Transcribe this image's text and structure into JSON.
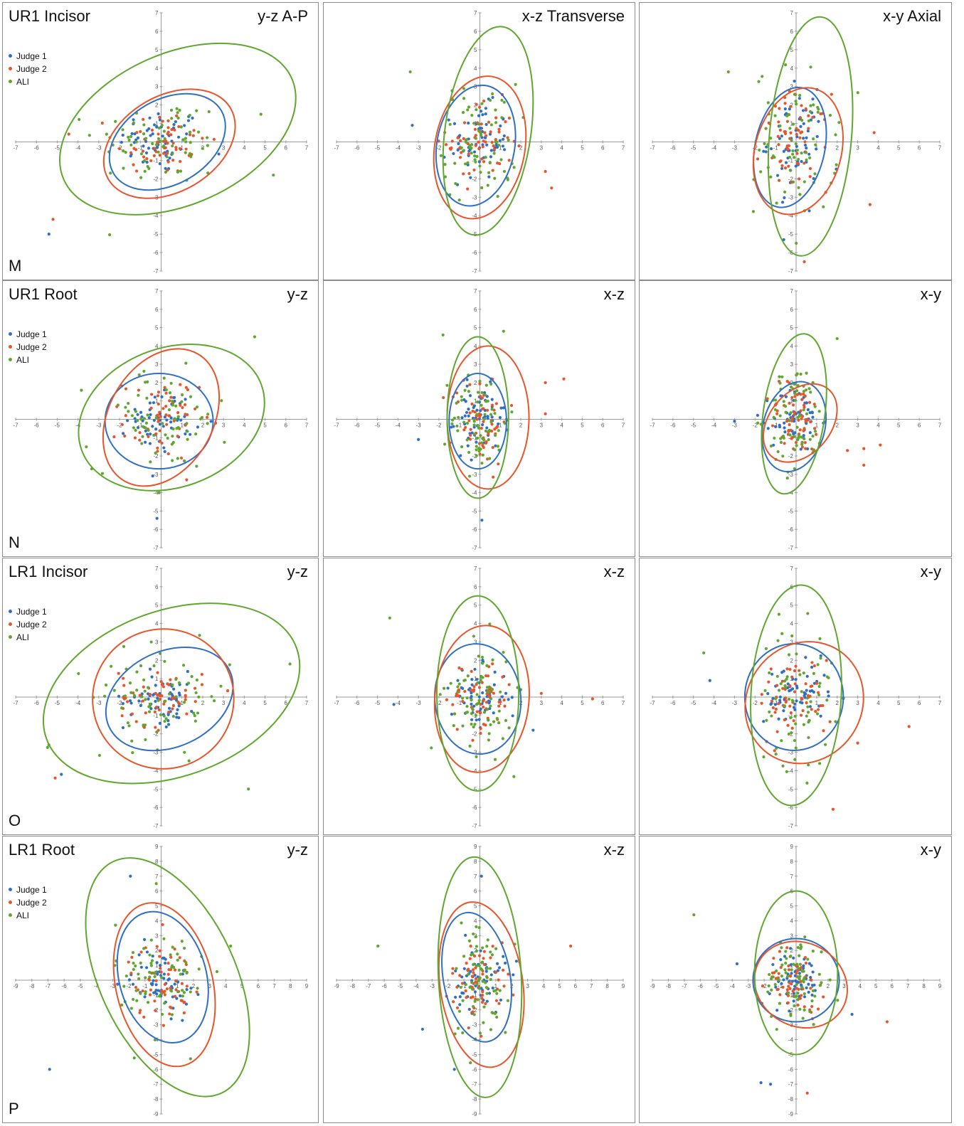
{
  "colors": {
    "judge1": "#2f6fc4",
    "judge2": "#e8552a",
    "ali": "#5fa72e"
  },
  "rows": [
    {
      "title": "UR1 Incisor",
      "letter": "M",
      "legend": [
        "Judge 1",
        "Judge 2",
        "ALI"
      ],
      "range": 7,
      "planes": [
        "y-z A-P",
        "x-z Transverse",
        "x-y Axial"
      ]
    },
    {
      "title": "UR1 Root",
      "letter": "N",
      "legend": [
        "Judge 1",
        "Judge 2",
        "ALI"
      ],
      "range": 7,
      "planes": [
        "y-z",
        "x-z",
        "x-y"
      ]
    },
    {
      "title": "LR1 Incisor",
      "letter": "O",
      "legend": [
        "Judge 1",
        "Judge 2",
        "ALI"
      ],
      "range": 7,
      "planes": [
        "y-z",
        "x-z",
        "x-y"
      ]
    },
    {
      "title": "LR1 Root",
      "letter": "P",
      "legend": [
        "Judge 1",
        "Judge 2",
        "ALI"
      ],
      "range": 9,
      "planes": [
        "y-z",
        "x-z",
        "x-y"
      ]
    }
  ],
  "chart_data": [
    {
      "type": "scatter",
      "title": "UR1 Incisor",
      "subtitle": "y-z A-P",
      "xlim": [
        -7,
        7
      ],
      "ylim": [
        -7,
        7
      ],
      "series": [
        {
          "name": "Judge 1",
          "n": 60,
          "sx": 1.0,
          "sy": 0.9
        },
        {
          "name": "Judge 2",
          "n": 60,
          "sx": 1.1,
          "sy": 0.9
        },
        {
          "name": "ALI",
          "n": 70,
          "sx": 1.6,
          "sy": 1.2
        }
      ],
      "ellipses": [
        {
          "name": "Judge 1",
          "cx": 0.3,
          "cy": 0,
          "rx": 3.0,
          "ry": 2.3,
          "angle": 30
        },
        {
          "name": "Judge 2",
          "cx": 0.4,
          "cy": -0.1,
          "rx": 3.4,
          "ry": 2.6,
          "angle": 30
        },
        {
          "name": "ALI",
          "cx": 0.8,
          "cy": 0.7,
          "rx": 6.0,
          "ry": 4.1,
          "angle": 24
        }
      ],
      "outliers": [
        {
          "series": "Judge 1",
          "x": -5.4,
          "y": -5
        },
        {
          "series": "Judge 2",
          "x": -5.2,
          "y": -4.2
        },
        {
          "series": "ALI",
          "x": 5.4,
          "y": -1.8
        },
        {
          "series": "ALI",
          "x": 4.8,
          "y": 1.5
        }
      ]
    },
    {
      "type": "scatter",
      "title": "UR1 Incisor",
      "subtitle": "x-z Transverse",
      "xlim": [
        -7,
        7
      ],
      "ylim": [
        -7,
        7
      ],
      "series": [
        {
          "name": "Judge 1",
          "n": 60,
          "sx": 0.7,
          "sy": 1.0
        },
        {
          "name": "Judge 2",
          "n": 60,
          "sx": 0.8,
          "sy": 1.1
        },
        {
          "name": "ALI",
          "n": 70,
          "sx": 0.9,
          "sy": 1.6
        }
      ],
      "ellipses": [
        {
          "name": "Judge 1",
          "cx": -0.2,
          "cy": -0.2,
          "rx": 1.9,
          "ry": 3.3,
          "angle": -10
        },
        {
          "name": "Judge 2",
          "cx": 0,
          "cy": -0.3,
          "rx": 2.2,
          "ry": 3.9,
          "angle": -10
        },
        {
          "name": "ALI",
          "cx": 0.4,
          "cy": 0.6,
          "rx": 2.1,
          "ry": 5.7,
          "angle": -8
        }
      ],
      "outliers": [
        {
          "series": "ALI",
          "x": -3.4,
          "y": 3.8
        },
        {
          "series": "Judge 2",
          "x": 3.5,
          "y": -2.5
        },
        {
          "series": "Judge 2",
          "x": 3.2,
          "y": -1.6
        },
        {
          "series": "Judge 1",
          "x": -3.3,
          "y": 0.9
        }
      ]
    },
    {
      "type": "scatter",
      "title": "UR1 Incisor",
      "subtitle": "x-y Axial",
      "xlim": [
        -7,
        7
      ],
      "ylim": [
        -7,
        7
      ],
      "series": [
        {
          "name": "Judge 1",
          "n": 60,
          "sx": 0.7,
          "sy": 1.3
        },
        {
          "name": "Judge 2",
          "n": 60,
          "sx": 0.8,
          "sy": 1.3
        },
        {
          "name": "ALI",
          "n": 70,
          "sx": 1.0,
          "sy": 2.0
        }
      ],
      "ellipses": [
        {
          "name": "Judge 1",
          "cx": -0.3,
          "cy": -0.3,
          "rx": 1.7,
          "ry": 3.3,
          "angle": -12
        },
        {
          "name": "Judge 2",
          "cx": 0.1,
          "cy": -0.5,
          "rx": 2.1,
          "ry": 3.5,
          "angle": -15
        },
        {
          "name": "ALI",
          "cx": 0.7,
          "cy": 0.3,
          "rx": 2.0,
          "ry": 6.5,
          "angle": -5
        }
      ],
      "outliers": [
        {
          "series": "ALI",
          "x": -3.3,
          "y": 3.8
        },
        {
          "series": "Judge 2",
          "x": 3.6,
          "y": -3.4
        },
        {
          "series": "Judge 2",
          "x": 0.4,
          "y": -6.5
        },
        {
          "series": "Judge 1",
          "x": -0.6,
          "y": -5.3
        },
        {
          "series": "Judge 2",
          "x": 3.8,
          "y": 0.5
        }
      ]
    },
    {
      "type": "scatter",
      "title": "UR1 Root",
      "subtitle": "y-z",
      "xlim": [
        -7,
        7
      ],
      "ylim": [
        -7,
        7
      ],
      "series": [
        {
          "name": "Judge 1",
          "n": 60,
          "sx": 0.8,
          "sy": 0.8
        },
        {
          "name": "Judge 2",
          "n": 60,
          "sx": 0.9,
          "sy": 1.1
        },
        {
          "name": "ALI",
          "n": 70,
          "sx": 1.6,
          "sy": 1.4
        }
      ],
      "ellipses": [
        {
          "name": "Judge 1",
          "cx": -0.1,
          "cy": -0.1,
          "rx": 2.6,
          "ry": 2.6,
          "angle": 0
        },
        {
          "name": "Judge 2",
          "cx": 0,
          "cy": 0.1,
          "rx": 2.5,
          "ry": 4.0,
          "angle": -30
        },
        {
          "name": "ALI",
          "cx": 0.5,
          "cy": 0.1,
          "rx": 4.6,
          "ry": 3.8,
          "angle": 20
        }
      ],
      "outliers": [
        {
          "series": "Judge 1",
          "x": -0.2,
          "y": -5.4
        },
        {
          "series": "ALI",
          "x": 4.5,
          "y": 4.5
        },
        {
          "series": "ALI",
          "x": -3.6,
          "y": -1.5
        },
        {
          "series": "ALI",
          "x": -0.1,
          "y": -4
        }
      ]
    },
    {
      "type": "scatter",
      "title": "UR1 Root",
      "subtitle": "x-z",
      "xlim": [
        -7,
        7
      ],
      "ylim": [
        -7,
        7
      ],
      "series": [
        {
          "name": "Judge 1",
          "n": 60,
          "sx": 0.6,
          "sy": 0.9
        },
        {
          "name": "Judge 2",
          "n": 60,
          "sx": 0.7,
          "sy": 1.2
        },
        {
          "name": "ALI",
          "n": 70,
          "sx": 0.7,
          "sy": 1.4
        }
      ],
      "ellipses": [
        {
          "name": "Judge 1",
          "cx": -0.1,
          "cy": -0.1,
          "rx": 1.4,
          "ry": 2.6,
          "angle": 0
        },
        {
          "name": "Judge 2",
          "cx": 0.4,
          "cy": 0.1,
          "rx": 2.0,
          "ry": 3.9,
          "angle": 0
        },
        {
          "name": "ALI",
          "cx": -0.1,
          "cy": 0.1,
          "rx": 1.5,
          "ry": 4.4,
          "angle": 0
        }
      ],
      "outliers": [
        {
          "series": "Judge 2",
          "x": 4.1,
          "y": 2.2
        },
        {
          "series": "Judge 2",
          "x": 3.2,
          "y": 2.0
        },
        {
          "series": "Judge 2",
          "x": 3.2,
          "y": 0.3
        },
        {
          "series": "Judge 1",
          "x": -3,
          "y": -1.1
        },
        {
          "series": "Judge 1",
          "x": 0.1,
          "y": -5.5
        },
        {
          "series": "ALI",
          "x": -1.8,
          "y": 4.6
        }
      ]
    },
    {
      "type": "scatter",
      "title": "UR1 Root",
      "subtitle": "x-y",
      "xlim": [
        -7,
        7
      ],
      "ylim": [
        -7,
        7
      ],
      "series": [
        {
          "name": "Judge 1",
          "n": 60,
          "sx": 0.6,
          "sy": 0.9
        },
        {
          "name": "Judge 2",
          "n": 60,
          "sx": 0.7,
          "sy": 1.0
        },
        {
          "name": "ALI",
          "n": 70,
          "sx": 0.7,
          "sy": 1.5
        }
      ],
      "ellipses": [
        {
          "name": "Judge 1",
          "cx": -0.1,
          "cy": -0.4,
          "rx": 1.5,
          "ry": 2.5,
          "angle": -15
        },
        {
          "name": "Judge 2",
          "cx": 0.2,
          "cy": -0.2,
          "rx": 1.5,
          "ry": 2.4,
          "angle": -40
        },
        {
          "name": "ALI",
          "cx": -0.1,
          "cy": 0.3,
          "rx": 1.5,
          "ry": 4.4,
          "angle": -8
        }
      ],
      "outliers": [
        {
          "series": "Judge 2",
          "x": 4.1,
          "y": -1.4
        },
        {
          "series": "Judge 2",
          "x": 3.3,
          "y": -1.6
        },
        {
          "series": "Judge 2",
          "x": 3.3,
          "y": -2.5
        },
        {
          "series": "Judge 2",
          "x": 2.5,
          "y": -1.7
        },
        {
          "series": "Judge 1",
          "x": -3,
          "y": -0.1
        },
        {
          "series": "ALI",
          "x": 2,
          "y": 4.4
        }
      ]
    },
    {
      "type": "scatter",
      "title": "LR1 Incisor",
      "subtitle": "y-z",
      "xlim": [
        -7,
        7
      ],
      "ylim": [
        -7,
        7
      ],
      "series": [
        {
          "name": "Judge 1",
          "n": 60,
          "sx": 0.9,
          "sy": 0.7
        },
        {
          "name": "Judge 2",
          "n": 60,
          "sx": 1.0,
          "sy": 0.8
        },
        {
          "name": "ALI",
          "n": 70,
          "sx": 1.7,
          "sy": 1.3
        }
      ],
      "ellipses": [
        {
          "name": "Judge 1",
          "cx": 0.4,
          "cy": -0.1,
          "rx": 3.2,
          "ry": 2.6,
          "angle": 25
        },
        {
          "name": "Judge 2",
          "cx": 0.1,
          "cy": -0.1,
          "rx": 3.4,
          "ry": 3.8,
          "angle": 15
        },
        {
          "name": "ALI",
          "cx": 0.5,
          "cy": 0.2,
          "rx": 6.4,
          "ry": 4.5,
          "angle": 20
        }
      ],
      "outliers": [
        {
          "series": "Judge 1",
          "x": -4.8,
          "y": -4.2
        },
        {
          "series": "Judge 2",
          "x": -5.1,
          "y": -4.4
        },
        {
          "series": "ALI",
          "x": 6.2,
          "y": 1.8
        },
        {
          "series": "ALI",
          "x": 4.2,
          "y": -5
        },
        {
          "series": "ALI",
          "x": -5.4,
          "y": -2.6
        }
      ]
    },
    {
      "type": "scatter",
      "title": "LR1 Incisor",
      "subtitle": "x-z",
      "xlim": [
        -7,
        7
      ],
      "ylim": [
        -7,
        7
      ],
      "series": [
        {
          "name": "Judge 1",
          "n": 60,
          "sx": 0.7,
          "sy": 0.8
        },
        {
          "name": "Judge 2",
          "n": 60,
          "sx": 0.8,
          "sy": 1.0
        },
        {
          "name": "ALI",
          "n": 70,
          "sx": 0.8,
          "sy": 1.5
        }
      ],
      "ellipses": [
        {
          "name": "Judge 1",
          "cx": -0.1,
          "cy": -0.1,
          "rx": 2.1,
          "ry": 3.0,
          "angle": 5
        },
        {
          "name": "Judge 2",
          "cx": 0.1,
          "cy": -0.1,
          "rx": 2.3,
          "ry": 4.0,
          "angle": -5
        },
        {
          "name": "ALI",
          "cx": -0.1,
          "cy": 0.2,
          "rx": 2.0,
          "ry": 5.3,
          "angle": 0
        }
      ],
      "outliers": [
        {
          "series": "ALI",
          "x": -4.4,
          "y": 4.3
        },
        {
          "series": "Judge 2",
          "x": 5.5,
          "y": -0.1
        },
        {
          "series": "Judge 1",
          "x": -4.2,
          "y": -0.4
        },
        {
          "series": "Judge 1",
          "x": 2.6,
          "y": -1.8
        },
        {
          "series": "Judge 2",
          "x": 3,
          "y": 0.2
        }
      ]
    },
    {
      "type": "scatter",
      "title": "LR1 Incisor",
      "subtitle": "x-y",
      "xlim": [
        -7,
        7
      ],
      "ylim": [
        -7,
        7
      ],
      "series": [
        {
          "name": "Judge 1",
          "n": 60,
          "sx": 0.8,
          "sy": 0.9
        },
        {
          "name": "Judge 2",
          "n": 60,
          "sx": 0.9,
          "sy": 1.1
        },
        {
          "name": "ALI",
          "n": 70,
          "sx": 0.9,
          "sy": 1.9
        }
      ],
      "ellipses": [
        {
          "name": "Judge 1",
          "cx": -0.1,
          "cy": 0,
          "rx": 2.4,
          "ry": 2.9,
          "angle": 0
        },
        {
          "name": "Judge 2",
          "cx": 0.4,
          "cy": -0.3,
          "rx": 2.8,
          "ry": 3.4,
          "angle": -35
        },
        {
          "name": "ALI",
          "cx": 0,
          "cy": 0.1,
          "rx": 2.2,
          "ry": 6.0,
          "angle": -3
        }
      ],
      "outliers": [
        {
          "series": "ALI",
          "x": -4.5,
          "y": 2.4
        },
        {
          "series": "Judge 2",
          "x": 5.5,
          "y": -1.6
        },
        {
          "series": "Judge 2",
          "x": 1.8,
          "y": -6.1
        },
        {
          "series": "Judge 2",
          "x": 3,
          "y": -2.5
        },
        {
          "series": "Judge 1",
          "x": -4.2,
          "y": 0.9
        }
      ]
    },
    {
      "type": "scatter",
      "title": "LR1 Root",
      "subtitle": "y-z",
      "xlim": [
        -9,
        9
      ],
      "ylim": [
        -9,
        9
      ],
      "series": [
        {
          "name": "Judge 1",
          "n": 60,
          "sx": 0.9,
          "sy": 1.1
        },
        {
          "name": "Judge 2",
          "n": 60,
          "sx": 1.0,
          "sy": 1.3
        },
        {
          "name": "ALI",
          "n": 70,
          "sx": 1.4,
          "sy": 2.0
        }
      ],
      "ellipses": [
        {
          "name": "Judge 1",
          "cx": 0.1,
          "cy": 0.2,
          "rx": 2.7,
          "ry": 4.5,
          "angle": 15
        },
        {
          "name": "Judge 2",
          "cx": 0.2,
          "cy": -0.3,
          "rx": 3.0,
          "ry": 5.6,
          "angle": 13
        },
        {
          "name": "ALI",
          "cx": 0.4,
          "cy": 0.2,
          "rx": 4.2,
          "ry": 8.6,
          "angle": 25
        }
      ],
      "outliers": [
        {
          "series": "Judge 1",
          "x": -6.9,
          "y": -6
        },
        {
          "series": "Judge 1",
          "x": -1.9,
          "y": 7
        },
        {
          "series": "ALI",
          "x": -0.3,
          "y": 6.5
        },
        {
          "series": "ALI",
          "x": 4.3,
          "y": 2.3
        }
      ]
    },
    {
      "type": "scatter",
      "title": "LR1 Root",
      "subtitle": "x-z",
      "xlim": [
        -9,
        9
      ],
      "ylim": [
        -9,
        9
      ],
      "series": [
        {
          "name": "Judge 1",
          "n": 60,
          "sx": 0.8,
          "sy": 1.1
        },
        {
          "name": "Judge 2",
          "n": 60,
          "sx": 0.9,
          "sy": 1.3
        },
        {
          "name": "ALI",
          "n": 70,
          "sx": 0.9,
          "sy": 2.1
        }
      ],
      "ellipses": [
        {
          "name": "Judge 1",
          "cx": -0.2,
          "cy": 0.2,
          "rx": 2.1,
          "ry": 4.4,
          "angle": 10
        },
        {
          "name": "Judge 2",
          "cx": 0.1,
          "cy": -0.3,
          "rx": 2.6,
          "ry": 5.6,
          "angle": 8
        },
        {
          "name": "ALI",
          "cx": 0,
          "cy": 0.2,
          "rx": 2.6,
          "ry": 8.1,
          "angle": 3
        }
      ],
      "outliers": [
        {
          "series": "ALI",
          "x": -6.4,
          "y": 2.3
        },
        {
          "series": "Judge 2",
          "x": 5.7,
          "y": 2.3
        },
        {
          "series": "Judge 1",
          "x": -3.6,
          "y": -3.3
        },
        {
          "series": "Judge 1",
          "x": -1.6,
          "y": -6
        },
        {
          "series": "Judge 1",
          "x": 0.1,
          "y": 7
        }
      ]
    },
    {
      "type": "scatter",
      "title": "LR1 Root",
      "subtitle": "x-y",
      "xlim": [
        -9,
        9
      ],
      "ylim": [
        -9,
        9
      ],
      "series": [
        {
          "name": "Judge 1",
          "n": 60,
          "sx": 0.8,
          "sy": 0.9
        },
        {
          "name": "Judge 2",
          "n": 60,
          "sx": 0.9,
          "sy": 1.0
        },
        {
          "name": "ALI",
          "n": 70,
          "sx": 1.0,
          "sy": 1.6
        }
      ],
      "ellipses": [
        {
          "name": "Judge 1",
          "cx": 0,
          "cy": 0,
          "rx": 2.7,
          "ry": 2.8,
          "angle": 0
        },
        {
          "name": "Judge 2",
          "cx": 0.3,
          "cy": -0.3,
          "rx": 3.0,
          "ry": 2.8,
          "angle": -30
        },
        {
          "name": "ALI",
          "cx": 0,
          "cy": 0.5,
          "rx": 2.6,
          "ry": 5.5,
          "angle": 0
        }
      ],
      "outliers": [
        {
          "series": "ALI",
          "x": -6.4,
          "y": 4.4
        },
        {
          "series": "Judge 2",
          "x": 5.7,
          "y": -2.8
        },
        {
          "series": "Judge 2",
          "x": 0.7,
          "y": -7.6
        },
        {
          "series": "Judge 1",
          "x": -2.2,
          "y": -6.9
        },
        {
          "series": "Judge 1",
          "x": -1.6,
          "y": -7
        },
        {
          "series": "Judge 1",
          "x": 3.5,
          "y": -2.3
        },
        {
          "series": "Judge 1",
          "x": -3.7,
          "y": 1.1
        }
      ]
    }
  ]
}
